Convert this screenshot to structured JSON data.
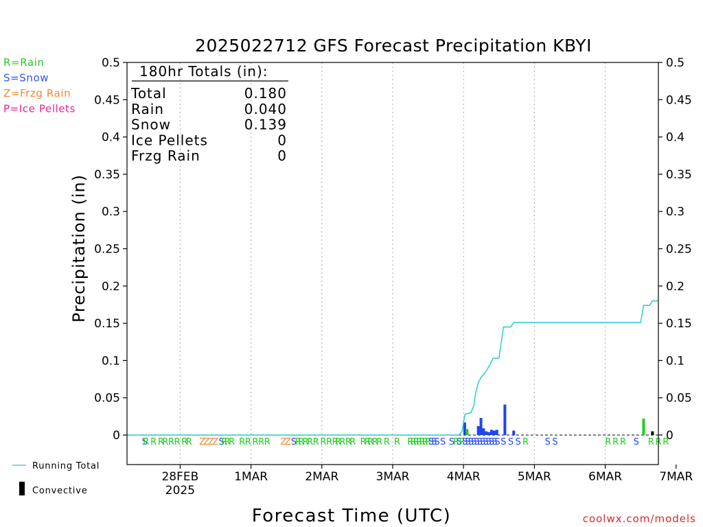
{
  "chart_data": {
    "type": "bar",
    "title": "2025022712 GFS Forecast Precipitation KBYI",
    "xlabel": "Forecast Time (UTC)",
    "ylabel": "Precipitation (in)",
    "ylim": [
      0,
      0.5
    ],
    "xlim": [
      -6,
      174
    ],
    "yticks": [
      "0",
      "0.05",
      "0.1",
      "0.15",
      "0.2",
      "0.25",
      "0.3",
      "0.35",
      "0.4",
      "0.45",
      "0.5"
    ],
    "x_tick_labels": [
      {
        "label": "28FEB",
        "sub": "2025",
        "hour": 12
      },
      {
        "label": "1MAR",
        "sub": "",
        "hour": 36
      },
      {
        "label": "2MAR",
        "sub": "",
        "hour": 60
      },
      {
        "label": "3MAR",
        "sub": "",
        "hour": 84
      },
      {
        "label": "4MAR",
        "sub": "",
        "hour": 108
      },
      {
        "label": "5MAR",
        "sub": "",
        "hour": 132
      },
      {
        "label": "6MAR",
        "sub": "",
        "hour": 156
      },
      {
        "label": "7MAR",
        "sub": "",
        "hour": 180
      }
    ],
    "grid": "vertical dotted at day boundaries",
    "legend_top_left": [
      {
        "text": "R=Rain",
        "color": "#22cc22"
      },
      {
        "text": "S=Snow",
        "color": "#3355ee"
      },
      {
        "text": "Z=Frzg Rain",
        "color": "#ee8833"
      },
      {
        "text": "P=Ice Pellets",
        "color": "#ee2299"
      }
    ],
    "legend_bottom": {
      "running_total": "Running Total",
      "convective": "Convective"
    },
    "totals_box": {
      "heading": "180hr Totals (in):",
      "rows": [
        {
          "label": "Total",
          "value": "0.180"
        },
        {
          "label": "Rain",
          "value": "0.040"
        },
        {
          "label": "Snow",
          "value": "0.139"
        },
        {
          "label": "Ice Pellets",
          "value": "0"
        },
        {
          "label": "Frzg Rain",
          "value": "0"
        }
      ]
    },
    "colors": {
      "rain": "#22cc22",
      "snow": "#2244ee",
      "frzg": "#ee8833",
      "ice": "#ee2299",
      "convective": "#000000",
      "running_total": "#22c8c8"
    },
    "bars": [
      {
        "x": 108.4,
        "value": 0.017,
        "type": "snow"
      },
      {
        "x": 109.2,
        "value": 0.008,
        "type": "rain"
      },
      {
        "x": 113.0,
        "value": 0.012,
        "type": "snow"
      },
      {
        "x": 113.9,
        "value": 0.023,
        "type": "snow"
      },
      {
        "x": 114.8,
        "value": 0.009,
        "type": "snow"
      },
      {
        "x": 115.7,
        "value": 0.005,
        "type": "snow"
      },
      {
        "x": 116.6,
        "value": 0.004,
        "type": "snow"
      },
      {
        "x": 117.5,
        "value": 0.007,
        "type": "snow"
      },
      {
        "x": 118.4,
        "value": 0.006,
        "type": "snow"
      },
      {
        "x": 119.3,
        "value": 0.007,
        "type": "snow"
      },
      {
        "x": 122.0,
        "value": 0.041,
        "type": "snow"
      },
      {
        "x": 125.0,
        "value": 0.006,
        "type": "snow"
      },
      {
        "x": 169.0,
        "value": 0.022,
        "type": "rain"
      },
      {
        "x": 172.0,
        "value": 0.005,
        "type": "convective"
      }
    ],
    "running_total": {
      "x": [
        -6,
        106.5,
        107.5,
        108.5,
        110.5,
        111.5,
        112.0,
        113.0,
        114.0,
        115.0,
        116.0,
        117.0,
        118.0,
        119.0,
        120.0,
        121.5,
        122.5,
        124.0,
        125.0,
        127.0,
        168.0,
        169.0,
        171.0,
        172.0,
        174.0
      ],
      "y": [
        0,
        0,
        0.005,
        0.028,
        0.03,
        0.04,
        0.055,
        0.07,
        0.078,
        0.082,
        0.088,
        0.095,
        0.103,
        0.103,
        0.103,
        0.145,
        0.145,
        0.145,
        0.151,
        0.151,
        0.151,
        0.174,
        0.174,
        0.18,
        0.18
      ]
    },
    "ptype_strip": [
      {
        "h": 0.0,
        "c": "S"
      },
      {
        "h": 0.5,
        "c": "R"
      },
      {
        "h": 3,
        "c": "R"
      },
      {
        "h": 5.5,
        "c": "R"
      },
      {
        "h": 7,
        "c": "R"
      },
      {
        "h": 9,
        "c": "R"
      },
      {
        "h": 11,
        "c": "R"
      },
      {
        "h": 13.5,
        "c": "R"
      },
      {
        "h": 15,
        "c": "R"
      },
      {
        "h": 19.5,
        "c": "Z"
      },
      {
        "h": 21,
        "c": "Z"
      },
      {
        "h": 22.5,
        "c": "Z"
      },
      {
        "h": 24,
        "c": "Z"
      },
      {
        "h": 26,
        "c": "S"
      },
      {
        "h": 27,
        "c": "R"
      },
      {
        "h": 28,
        "c": "R"
      },
      {
        "h": 29.5,
        "c": "R"
      },
      {
        "h": 33,
        "c": "R"
      },
      {
        "h": 35,
        "c": "R"
      },
      {
        "h": 37.5,
        "c": "R"
      },
      {
        "h": 39.5,
        "c": "R"
      },
      {
        "h": 41.5,
        "c": "R"
      },
      {
        "h": 47,
        "c": "Z"
      },
      {
        "h": 48.5,
        "c": "Z"
      },
      {
        "h": 50.5,
        "c": "S"
      },
      {
        "h": 52,
        "c": "R"
      },
      {
        "h": 53,
        "c": "R"
      },
      {
        "h": 54.5,
        "c": "R"
      },
      {
        "h": 56,
        "c": "R"
      },
      {
        "h": 58,
        "c": "R"
      },
      {
        "h": 60.5,
        "c": "R"
      },
      {
        "h": 62.5,
        "c": "R"
      },
      {
        "h": 64.5,
        "c": "R"
      },
      {
        "h": 65.5,
        "c": "R"
      },
      {
        "h": 67,
        "c": "R"
      },
      {
        "h": 69,
        "c": "R"
      },
      {
        "h": 70.5,
        "c": "R"
      },
      {
        "h": 74,
        "c": "R"
      },
      {
        "h": 75.5,
        "c": "R"
      },
      {
        "h": 76.5,
        "c": "R"
      },
      {
        "h": 78,
        "c": "R"
      },
      {
        "h": 79.5,
        "c": "R"
      },
      {
        "h": 82,
        "c": "R"
      },
      {
        "h": 85.5,
        "c": "R"
      },
      {
        "h": 90,
        "c": "R"
      },
      {
        "h": 91,
        "c": "R"
      },
      {
        "h": 92,
        "c": "R"
      },
      {
        "h": 93,
        "c": "R"
      },
      {
        "h": 94,
        "c": "R"
      },
      {
        "h": 95,
        "c": "R"
      },
      {
        "h": 96,
        "c": "R"
      },
      {
        "h": 97,
        "c": "S"
      },
      {
        "h": 98,
        "c": "S"
      },
      {
        "h": 99,
        "c": "S"
      },
      {
        "h": 101,
        "c": "S"
      },
      {
        "h": 104,
        "c": "S"
      },
      {
        "h": 105.5,
        "c": "R"
      },
      {
        "h": 106.5,
        "c": "S"
      },
      {
        "h": 107.5,
        "c": "R"
      },
      {
        "h": 108.5,
        "c": "S"
      },
      {
        "h": 109.5,
        "c": "S"
      },
      {
        "h": 110.5,
        "c": "S"
      },
      {
        "h": 111.5,
        "c": "S"
      },
      {
        "h": 112.5,
        "c": "S"
      },
      {
        "h": 113.5,
        "c": "S"
      },
      {
        "h": 114.5,
        "c": "S"
      },
      {
        "h": 115.5,
        "c": "S"
      },
      {
        "h": 116.5,
        "c": "S"
      },
      {
        "h": 117.5,
        "c": "S"
      },
      {
        "h": 118.5,
        "c": "S"
      },
      {
        "h": 119.5,
        "c": "S"
      },
      {
        "h": 121.5,
        "c": "S"
      },
      {
        "h": 124,
        "c": "S"
      },
      {
        "h": 126.5,
        "c": "S"
      },
      {
        "h": 129,
        "c": "R"
      },
      {
        "h": 136.5,
        "c": "S"
      },
      {
        "h": 139,
        "c": "S"
      },
      {
        "h": 157,
        "c": "R"
      },
      {
        "h": 159.5,
        "c": "R"
      },
      {
        "h": 162,
        "c": "R"
      },
      {
        "h": 166.5,
        "c": "S"
      },
      {
        "h": 171.5,
        "c": "R"
      },
      {
        "h": 174,
        "c": "R"
      },
      {
        "h": 176.5,
        "c": "R"
      }
    ]
  },
  "footer": {
    "credit": "coolwx.com/models"
  }
}
